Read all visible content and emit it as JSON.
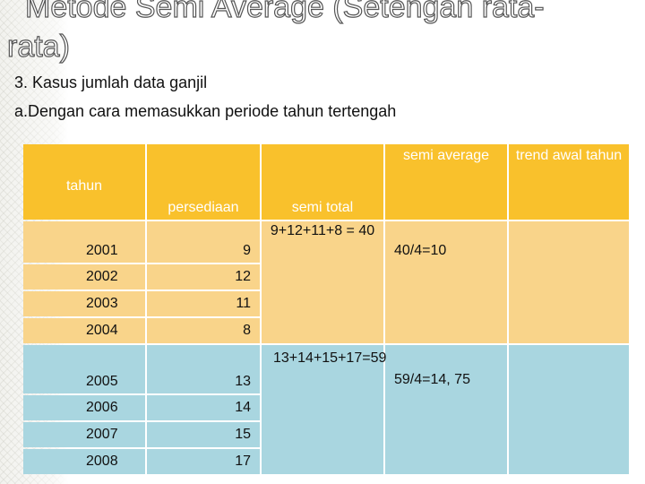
{
  "title": {
    "line1": "Metode Semi Average (Setengan rata-",
    "line2": "rata)"
  },
  "subtitle": "3. Kasus jumlah data ganjil",
  "subheading": "a.Dengan cara memasukkan periode tahun tertengah",
  "table": {
    "headers": [
      "tahun",
      "persediaan",
      "semi total",
      "semi average",
      "trend awal tahun"
    ],
    "rows": [
      {
        "tahun": "2001",
        "persediaan": "9",
        "semi_total": "9+12+11+8 = 40",
        "semi_average": "40/4=10",
        "trend": ""
      },
      {
        "tahun": "2002",
        "persediaan": "12",
        "semi_total": "",
        "semi_average": "",
        "trend": ""
      },
      {
        "tahun": "2003",
        "persediaan": "11",
        "semi_total": "",
        "semi_average": "",
        "trend": ""
      },
      {
        "tahun": "2004",
        "persediaan": "8",
        "semi_total": "",
        "semi_average": "",
        "trend": ""
      },
      {
        "tahun": "2005",
        "persediaan": "13",
        "semi_total": "13+14+15+17=59",
        "semi_average": "59/4=14, 75",
        "trend": ""
      },
      {
        "tahun": "2006",
        "persediaan": "14",
        "semi_total": "",
        "semi_average": "",
        "trend": ""
      },
      {
        "tahun": "2007",
        "persediaan": "15",
        "semi_total": "",
        "semi_average": "",
        "trend": ""
      },
      {
        "tahun": "2008",
        "persediaan": "17",
        "semi_total": "",
        "semi_average": "",
        "trend": ""
      }
    ]
  },
  "colors": {
    "header": "#f9c12c",
    "group1": "#f9d48a",
    "group2": "#a9d6e0"
  }
}
